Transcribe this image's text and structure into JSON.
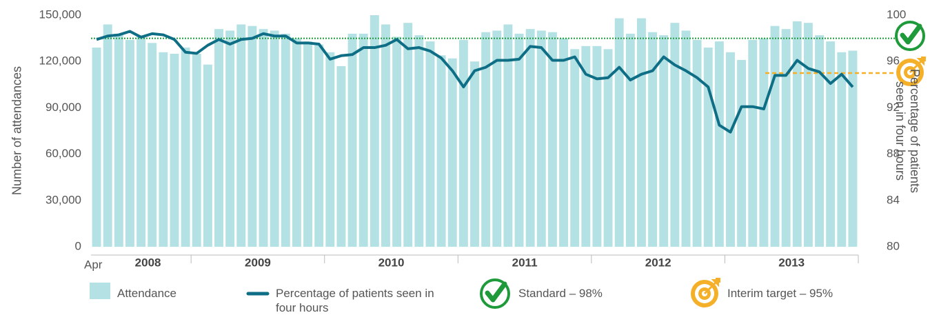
{
  "chart_data": {
    "type": "bar_line",
    "y_label": "Number of attendances",
    "y2_label": "Percentage of patients seen in four hours",
    "categories": [
      "Apr",
      null,
      null,
      null,
      null,
      null,
      null,
      null,
      null,
      null,
      null,
      null,
      null,
      null,
      null,
      null,
      null,
      null,
      null,
      null,
      null,
      null,
      null,
      null,
      null,
      null,
      null,
      null,
      null,
      null,
      null,
      null,
      null,
      null,
      null,
      null,
      null,
      null,
      null,
      null,
      null,
      null,
      null,
      null,
      null,
      null,
      null,
      null,
      null,
      null,
      null,
      null,
      null,
      null,
      null,
      null,
      null,
      null,
      null,
      null,
      null,
      null,
      null,
      null,
      null,
      null,
      null,
      null,
      null
    ],
    "x_groups": [
      {
        "label": "2008",
        "count": 9
      },
      {
        "label": "2009",
        "count": 12
      },
      {
        "label": "2010",
        "count": 12
      },
      {
        "label": "2011",
        "count": 12
      },
      {
        "label": "2012",
        "count": 12
      },
      {
        "label": "2013",
        "count": 12
      }
    ],
    "series": [
      {
        "name": "Attendance",
        "type": "bar",
        "color": "#b4e1e4",
        "values": [
          129000,
          144000,
          138000,
          134000,
          136000,
          132000,
          126000,
          125000,
          129000,
          125000,
          118000,
          141000,
          140000,
          144000,
          143000,
          141000,
          140000,
          138000,
          135000,
          133000,
          131000,
          126000,
          117000,
          138000,
          138000,
          150000,
          144000,
          136000,
          145000,
          137000,
          133000,
          124000,
          122000,
          134000,
          120000,
          139000,
          140000,
          144000,
          138000,
          141000,
          140000,
          139000,
          135000,
          128000,
          130000,
          130000,
          128000,
          148000,
          138000,
          148000,
          139000,
          137000,
          145000,
          140000,
          134000,
          129000,
          133000,
          126000,
          121000,
          134000,
          135000,
          143000,
          141000,
          146000,
          145000,
          137000,
          133000,
          126000,
          127000
        ]
      },
      {
        "name": "Percentage of patients seen in four hours",
        "type": "line",
        "axis": "y2",
        "color": "#0e6e85",
        "values": [
          97.9,
          98.2,
          98.3,
          98.6,
          98.1,
          98.4,
          98.3,
          97.9,
          96.8,
          96.7,
          97.4,
          97.9,
          97.5,
          97.9,
          98.0,
          98.4,
          98.2,
          98.2,
          97.6,
          97.6,
          97.5,
          96.2,
          96.5,
          96.6,
          97.2,
          97.2,
          97.4,
          97.9,
          97.1,
          97.2,
          96.9,
          96.3,
          95.2,
          93.8,
          95.2,
          95.5,
          96.1,
          96.1,
          96.2,
          97.3,
          97.2,
          96.1,
          96.1,
          96.4,
          94.9,
          94.5,
          94.6,
          95.5,
          94.4,
          94.9,
          95.2,
          96.4,
          95.7,
          95.2,
          94.6,
          93.8,
          90.5,
          89.9,
          92.1,
          92.1,
          91.9,
          94.8,
          94.8,
          96.1,
          95.4,
          95.1,
          94.1,
          94.9,
          93.8
        ]
      }
    ],
    "references": [
      {
        "label": "Standard – 98%",
        "value": 98,
        "color": "#1f9a3b"
      },
      {
        "label": "Interim target – 95%",
        "value": 95,
        "color": "#f5b02a"
      }
    ],
    "ylim": [
      0,
      150000
    ],
    "yticks": [
      0,
      {
        "value": 30000,
        "label": "30,000"
      },
      {
        "value": 60000,
        "label": "60,000"
      },
      {
        "value": 90000,
        "label": "90,000"
      },
      {
        "value": 120000,
        "label": "120,000"
      },
      {
        "value": 150000,
        "label": "150,000"
      }
    ],
    "y2lim": [
      80,
      100
    ],
    "y2ticks": [
      80,
      84,
      88,
      92,
      96,
      100
    ]
  }
}
